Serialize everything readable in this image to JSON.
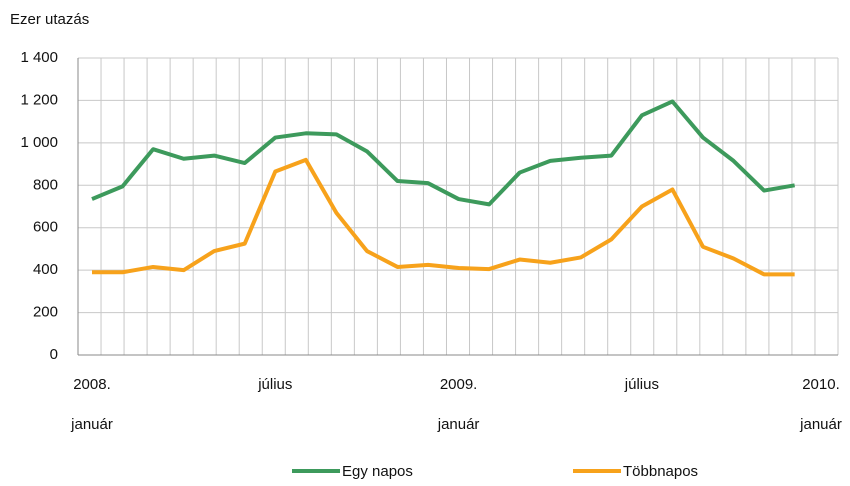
{
  "chart_data": {
    "type": "line",
    "y_label": "Ezer utazás",
    "categories": [
      "2008. január",
      null,
      null,
      null,
      null,
      null,
      "július",
      null,
      null,
      null,
      null,
      null,
      "2009. január",
      null,
      null,
      null,
      null,
      null,
      "július",
      null,
      null,
      null,
      null,
      null,
      "2010. január"
    ],
    "series": [
      {
        "name": "Egy napos",
        "color": "#3d9a5c",
        "values": [
          735,
          795,
          970,
          925,
          940,
          905,
          1025,
          1045,
          1040,
          960,
          820,
          810,
          735,
          710,
          860,
          915,
          930,
          940,
          1130,
          1195,
          1025,
          915,
          775,
          800,
          null
        ]
      },
      {
        "name": "Többnapos",
        "color": "#f7a21b",
        "values": [
          390,
          390,
          415,
          400,
          490,
          525,
          865,
          920,
          670,
          490,
          415,
          425,
          410,
          405,
          450,
          435,
          460,
          545,
          700,
          780,
          510,
          455,
          380,
          380,
          null
        ]
      }
    ],
    "ylim": [
      0,
      1400
    ],
    "yticks": [
      0,
      200,
      400,
      600,
      800,
      {
        "value": 1000,
        "label": "1 000"
      },
      {
        "value": 1200,
        "label": "1 200"
      },
      {
        "value": 1400,
        "label": "1 400"
      }
    ],
    "grid": true
  }
}
